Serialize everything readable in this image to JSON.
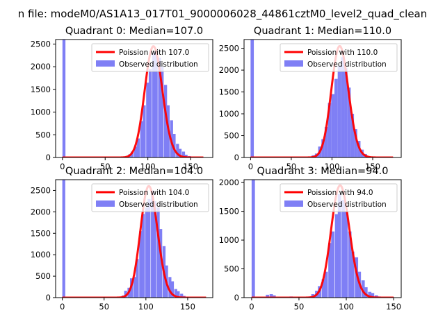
{
  "figure": {
    "suptitle": "n file: modeM0/AS1A13_017T01_9000006028_44861cztM0_level2_quad_clean"
  },
  "legend": {
    "observed_label": "Observed distribution"
  },
  "colors": {
    "histogram": "#7f7ff5",
    "poisson": "#ff0000",
    "axes": "#000000"
  },
  "chart_data": [
    {
      "type": "bar",
      "title": "Quadrant 0: Median=107.0",
      "xlim": [
        -8,
        176
      ],
      "ylim": [
        0,
        2600
      ],
      "xticks": [
        0,
        50,
        100,
        150
      ],
      "yticks": [
        0,
        500,
        1000,
        1500,
        2000,
        2500
      ],
      "legend_position": "top-right",
      "series": [
        {
          "name": "Poission with 107.0",
          "kind": "line",
          "x_range": [
            0,
            165
          ],
          "lambda": 107.0,
          "peak": 2450
        },
        {
          "name": "Observed distribution",
          "kind": "histogram",
          "bin_width": 3.5,
          "bins": [
            [
              0,
              2600
            ],
            [
              73,
              25
            ],
            [
              77,
              70
            ],
            [
              80,
              130
            ],
            [
              84,
              240
            ],
            [
              87,
              420
            ],
            [
              91,
              800
            ],
            [
              94,
              1150
            ],
            [
              98,
              1650
            ],
            [
              101,
              1950
            ],
            [
              105,
              2300
            ],
            [
              108,
              2350
            ],
            [
              112,
              2200
            ],
            [
              115,
              2000
            ],
            [
              119,
              1600
            ],
            [
              122,
              1150
            ],
            [
              126,
              820
            ],
            [
              129,
              520
            ],
            [
              133,
              300
            ],
            [
              136,
              190
            ],
            [
              140,
              130
            ],
            [
              143,
              60
            ],
            [
              147,
              30
            ]
          ]
        }
      ]
    },
    {
      "type": "bar",
      "title": "Quadrant 1: Median=110.0",
      "xlim": [
        -8,
        185
      ],
      "ylim": [
        0,
        2700
      ],
      "xticks": [
        0,
        50,
        100,
        150
      ],
      "yticks": [
        0,
        500,
        1000,
        1500,
        2000,
        2500
      ],
      "legend_position": "top-right",
      "series": [
        {
          "name": "Poission with 110.0",
          "kind": "line",
          "x_range": [
            0,
            175
          ],
          "lambda": 110.0,
          "peak": 2550
        },
        {
          "name": "Observed distribution",
          "kind": "histogram",
          "bin_width": 4,
          "bins": [
            [
              0,
              2700
            ],
            [
              75,
              50
            ],
            [
              79,
              90
            ],
            [
              83,
              250
            ],
            [
              87,
              420
            ],
            [
              91,
              700
            ],
            [
              95,
              1250
            ],
            [
              99,
              1450
            ],
            [
              103,
              1800
            ],
            [
              107,
              2100
            ],
            [
              111,
              2300
            ],
            [
              115,
              2050
            ],
            [
              119,
              1600
            ],
            [
              123,
              1000
            ],
            [
              127,
              650
            ],
            [
              131,
              380
            ],
            [
              135,
              180
            ],
            [
              139,
              80
            ],
            [
              143,
              30
            ]
          ]
        }
      ]
    },
    {
      "type": "bar",
      "title": "Quadrant 2: Median=104.0",
      "xlim": [
        -8,
        180
      ],
      "ylim": [
        0,
        2750
      ],
      "xticks": [
        0,
        50,
        100,
        150
      ],
      "yticks": [
        0,
        500,
        1000,
        1500,
        2000,
        2500
      ],
      "legend_position": "top-right",
      "series": [
        {
          "name": "Poission with 104.0",
          "kind": "line",
          "x_range": [
            0,
            172
          ],
          "lambda": 104.0,
          "peak": 2600
        },
        {
          "name": "Observed distribution",
          "kind": "histogram",
          "bin_width": 3.5,
          "bins": [
            [
              0,
              2750
            ],
            [
              71,
              50
            ],
            [
              74,
              160
            ],
            [
              78,
              230
            ],
            [
              81,
              450
            ],
            [
              85,
              480
            ],
            [
              88,
              900
            ],
            [
              92,
              1550
            ],
            [
              95,
              1950
            ],
            [
              99,
              2100
            ],
            [
              102,
              2300
            ],
            [
              106,
              2500
            ],
            [
              109,
              2250
            ],
            [
              113,
              2100
            ],
            [
              116,
              1600
            ],
            [
              120,
              1200
            ],
            [
              123,
              750
            ],
            [
              127,
              480
            ],
            [
              130,
              380
            ],
            [
              134,
              200
            ],
            [
              137,
              150
            ],
            [
              141,
              90
            ],
            [
              144,
              40
            ],
            [
              148,
              20
            ]
          ]
        }
      ]
    },
    {
      "type": "bar",
      "title": "Quadrant 3: Median=94.0",
      "xlim": [
        -8,
        158
      ],
      "ylim": [
        0,
        2050
      ],
      "xticks": [
        0,
        50,
        100,
        150
      ],
      "yticks": [
        0,
        500,
        1000,
        1500,
        2000
      ],
      "legend_position": "top-right",
      "series": [
        {
          "name": "Poission with 94.0",
          "kind": "line",
          "x_range": [
            0,
            150
          ],
          "lambda": 94.0,
          "peak": 1950
        },
        {
          "name": "Observed distribution",
          "kind": "histogram",
          "bin_width": 3.5,
          "bins": [
            [
              0,
              2050
            ],
            [
              15,
              50
            ],
            [
              19,
              60
            ],
            [
              22,
              40
            ],
            [
              40,
              20
            ],
            [
              60,
              20
            ],
            [
              63,
              60
            ],
            [
              67,
              120
            ],
            [
              70,
              200
            ],
            [
              74,
              320
            ],
            [
              77,
              450
            ],
            [
              81,
              950
            ],
            [
              84,
              1150
            ],
            [
              88,
              1450
            ],
            [
              91,
              1800
            ],
            [
              95,
              1700
            ],
            [
              98,
              1500
            ],
            [
              102,
              1150
            ],
            [
              105,
              800
            ],
            [
              109,
              700
            ],
            [
              112,
              450
            ],
            [
              116,
              300
            ],
            [
              119,
              180
            ],
            [
              123,
              100
            ],
            [
              126,
              80
            ],
            [
              130,
              40
            ],
            [
              133,
              20
            ]
          ]
        }
      ]
    }
  ]
}
